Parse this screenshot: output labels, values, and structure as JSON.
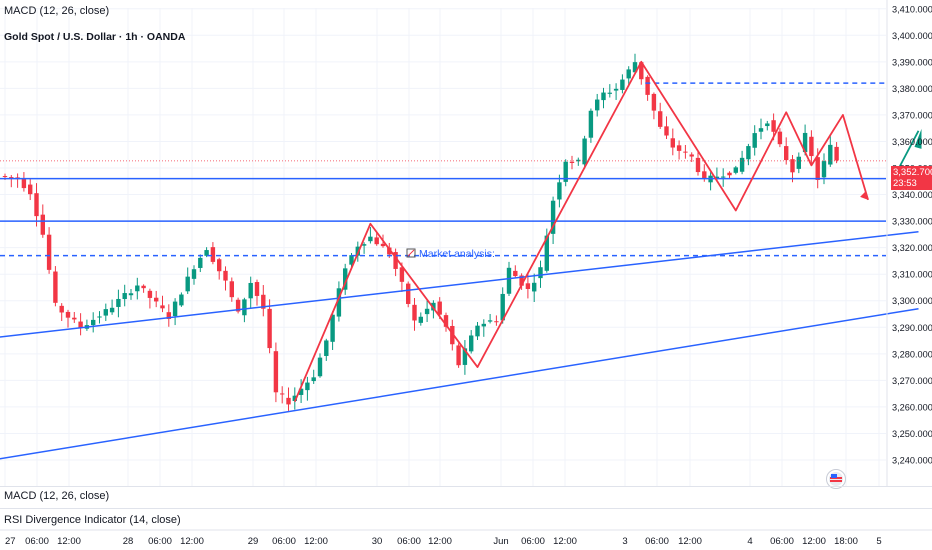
{
  "header": {
    "indicator_top": "MACD (12, 26, close)",
    "title": "Gold Spot / U.S. Dollar · 1h · OANDA"
  },
  "annotation": {
    "label": "Market analysis:"
  },
  "price_tag": {
    "price": "3,352.700",
    "countdown": "23:53",
    "color": "#f23645"
  },
  "indicators": {
    "macd": "MACD (12, 26, close)",
    "rsi": "RSI Divergence Indicator (14, close)"
  },
  "colors": {
    "up": "#089981",
    "down": "#f23645",
    "trendline": "#2962ff",
    "zigzag": "#f23645",
    "grid": "#f0f3fa"
  },
  "chart_data": {
    "type": "candlestick",
    "title": "Gold Spot / U.S. Dollar · 1h · OANDA",
    "y_axis": {
      "ticks": [
        3240,
        3250,
        3260,
        3270,
        3280,
        3290,
        3300,
        3310,
        3320,
        3330,
        3340,
        3350,
        3360,
        3370,
        3380,
        3390,
        3400,
        3410
      ],
      "tick_labels": [
        "3,240.000",
        "3,250.000",
        "3,260.000",
        "3,270.000",
        "3,280.000",
        "3,290.000",
        "3,300.000",
        "3,310.000",
        "3,320.000",
        "3,330.000",
        "3,340.000",
        "3,350.000",
        "3,360.000",
        "3,370.000",
        "3,380.000",
        "3,390.000",
        "3,400.000",
        "3,410.000"
      ],
      "range": [
        3236,
        3412
      ]
    },
    "x_axis": {
      "labels": [
        "27",
        "06:00",
        "12:00",
        "28",
        "06:00",
        "12:00",
        "29",
        "06:00",
        "12:00",
        "30",
        "06:00",
        "12:00",
        "Jun",
        "06:00",
        "12:00",
        "3",
        "06:00",
        "12:00",
        "4",
        "06:00",
        "12:00",
        "18:00",
        "5"
      ]
    },
    "anchors": [
      {
        "i": 0,
        "v": 3347
      },
      {
        "i": 3,
        "v": 3346
      },
      {
        "i": 5,
        "v": 3341
      },
      {
        "i": 7,
        "v": 3325
      },
      {
        "i": 9,
        "v": 3298
      },
      {
        "i": 13,
        "v": 3290
      },
      {
        "i": 17,
        "v": 3296
      },
      {
        "i": 22,
        "v": 3306
      },
      {
        "i": 27,
        "v": 3294
      },
      {
        "i": 31,
        "v": 3313
      },
      {
        "i": 33,
        "v": 3320
      },
      {
        "i": 36,
        "v": 3307
      },
      {
        "i": 38,
        "v": 3295
      },
      {
        "i": 40,
        "v": 3307
      },
      {
        "i": 42,
        "v": 3297
      },
      {
        "i": 44,
        "v": 3265
      },
      {
        "i": 46,
        "v": 3262
      },
      {
        "i": 50,
        "v": 3272
      },
      {
        "i": 52,
        "v": 3285
      },
      {
        "i": 55,
        "v": 3313
      },
      {
        "i": 57,
        "v": 3321
      },
      {
        "i": 59,
        "v": 3324
      },
      {
        "i": 62,
        "v": 3318
      },
      {
        "i": 64,
        "v": 3306
      },
      {
        "i": 66,
        "v": 3292
      },
      {
        "i": 69,
        "v": 3299
      },
      {
        "i": 71,
        "v": 3290
      },
      {
        "i": 73,
        "v": 3276
      },
      {
        "i": 76,
        "v": 3291
      },
      {
        "i": 79,
        "v": 3293
      },
      {
        "i": 81,
        "v": 3312
      },
      {
        "i": 84,
        "v": 3304
      },
      {
        "i": 86,
        "v": 3312
      },
      {
        "i": 88,
        "v": 3338
      },
      {
        "i": 90,
        "v": 3353
      },
      {
        "i": 92,
        "v": 3352
      },
      {
        "i": 94,
        "v": 3372
      },
      {
        "i": 96,
        "v": 3378
      },
      {
        "i": 98,
        "v": 3380
      },
      {
        "i": 101,
        "v": 3390
      },
      {
        "i": 103,
        "v": 3378
      },
      {
        "i": 105,
        "v": 3365
      },
      {
        "i": 107,
        "v": 3358
      },
      {
        "i": 110,
        "v": 3354
      },
      {
        "i": 112,
        "v": 3345
      },
      {
        "i": 115,
        "v": 3348
      },
      {
        "i": 117,
        "v": 3349
      },
      {
        "i": 120,
        "v": 3363
      },
      {
        "i": 122,
        "v": 3368
      },
      {
        "i": 124,
        "v": 3358
      },
      {
        "i": 126,
        "v": 3349
      },
      {
        "i": 128,
        "v": 3362
      },
      {
        "i": 130,
        "v": 3346
      },
      {
        "i": 132,
        "v": 3358
      },
      {
        "i": 133,
        "v": 3353
      }
    ],
    "horizontal_lines": [
      {
        "value": 3346,
        "style": "solid"
      },
      {
        "value": 3330,
        "style": "solid"
      },
      {
        "value": 3317,
        "style": "dashed"
      },
      {
        "value": 3382,
        "style": "dashed",
        "from_index": 101
      }
    ],
    "trendlines": [
      {
        "points": [
          [
            -2,
            3286
          ],
          [
            145,
            3326
          ]
        ]
      },
      {
        "points": [
          [
            -2,
            3240
          ],
          [
            145,
            3297
          ]
        ]
      }
    ],
    "zigzags": [
      [
        [
          46,
          3262
        ],
        [
          58,
          3329
        ],
        [
          75,
          3275
        ],
        [
          101,
          3390
        ],
        [
          116,
          3334
        ],
        [
          124,
          3371
        ],
        [
          128,
          3351
        ],
        [
          133,
          3370
        ],
        [
          137,
          3338
        ]
      ],
      [
        [
          141,
          3346
        ],
        [
          145,
          3364
        ]
      ]
    ]
  }
}
